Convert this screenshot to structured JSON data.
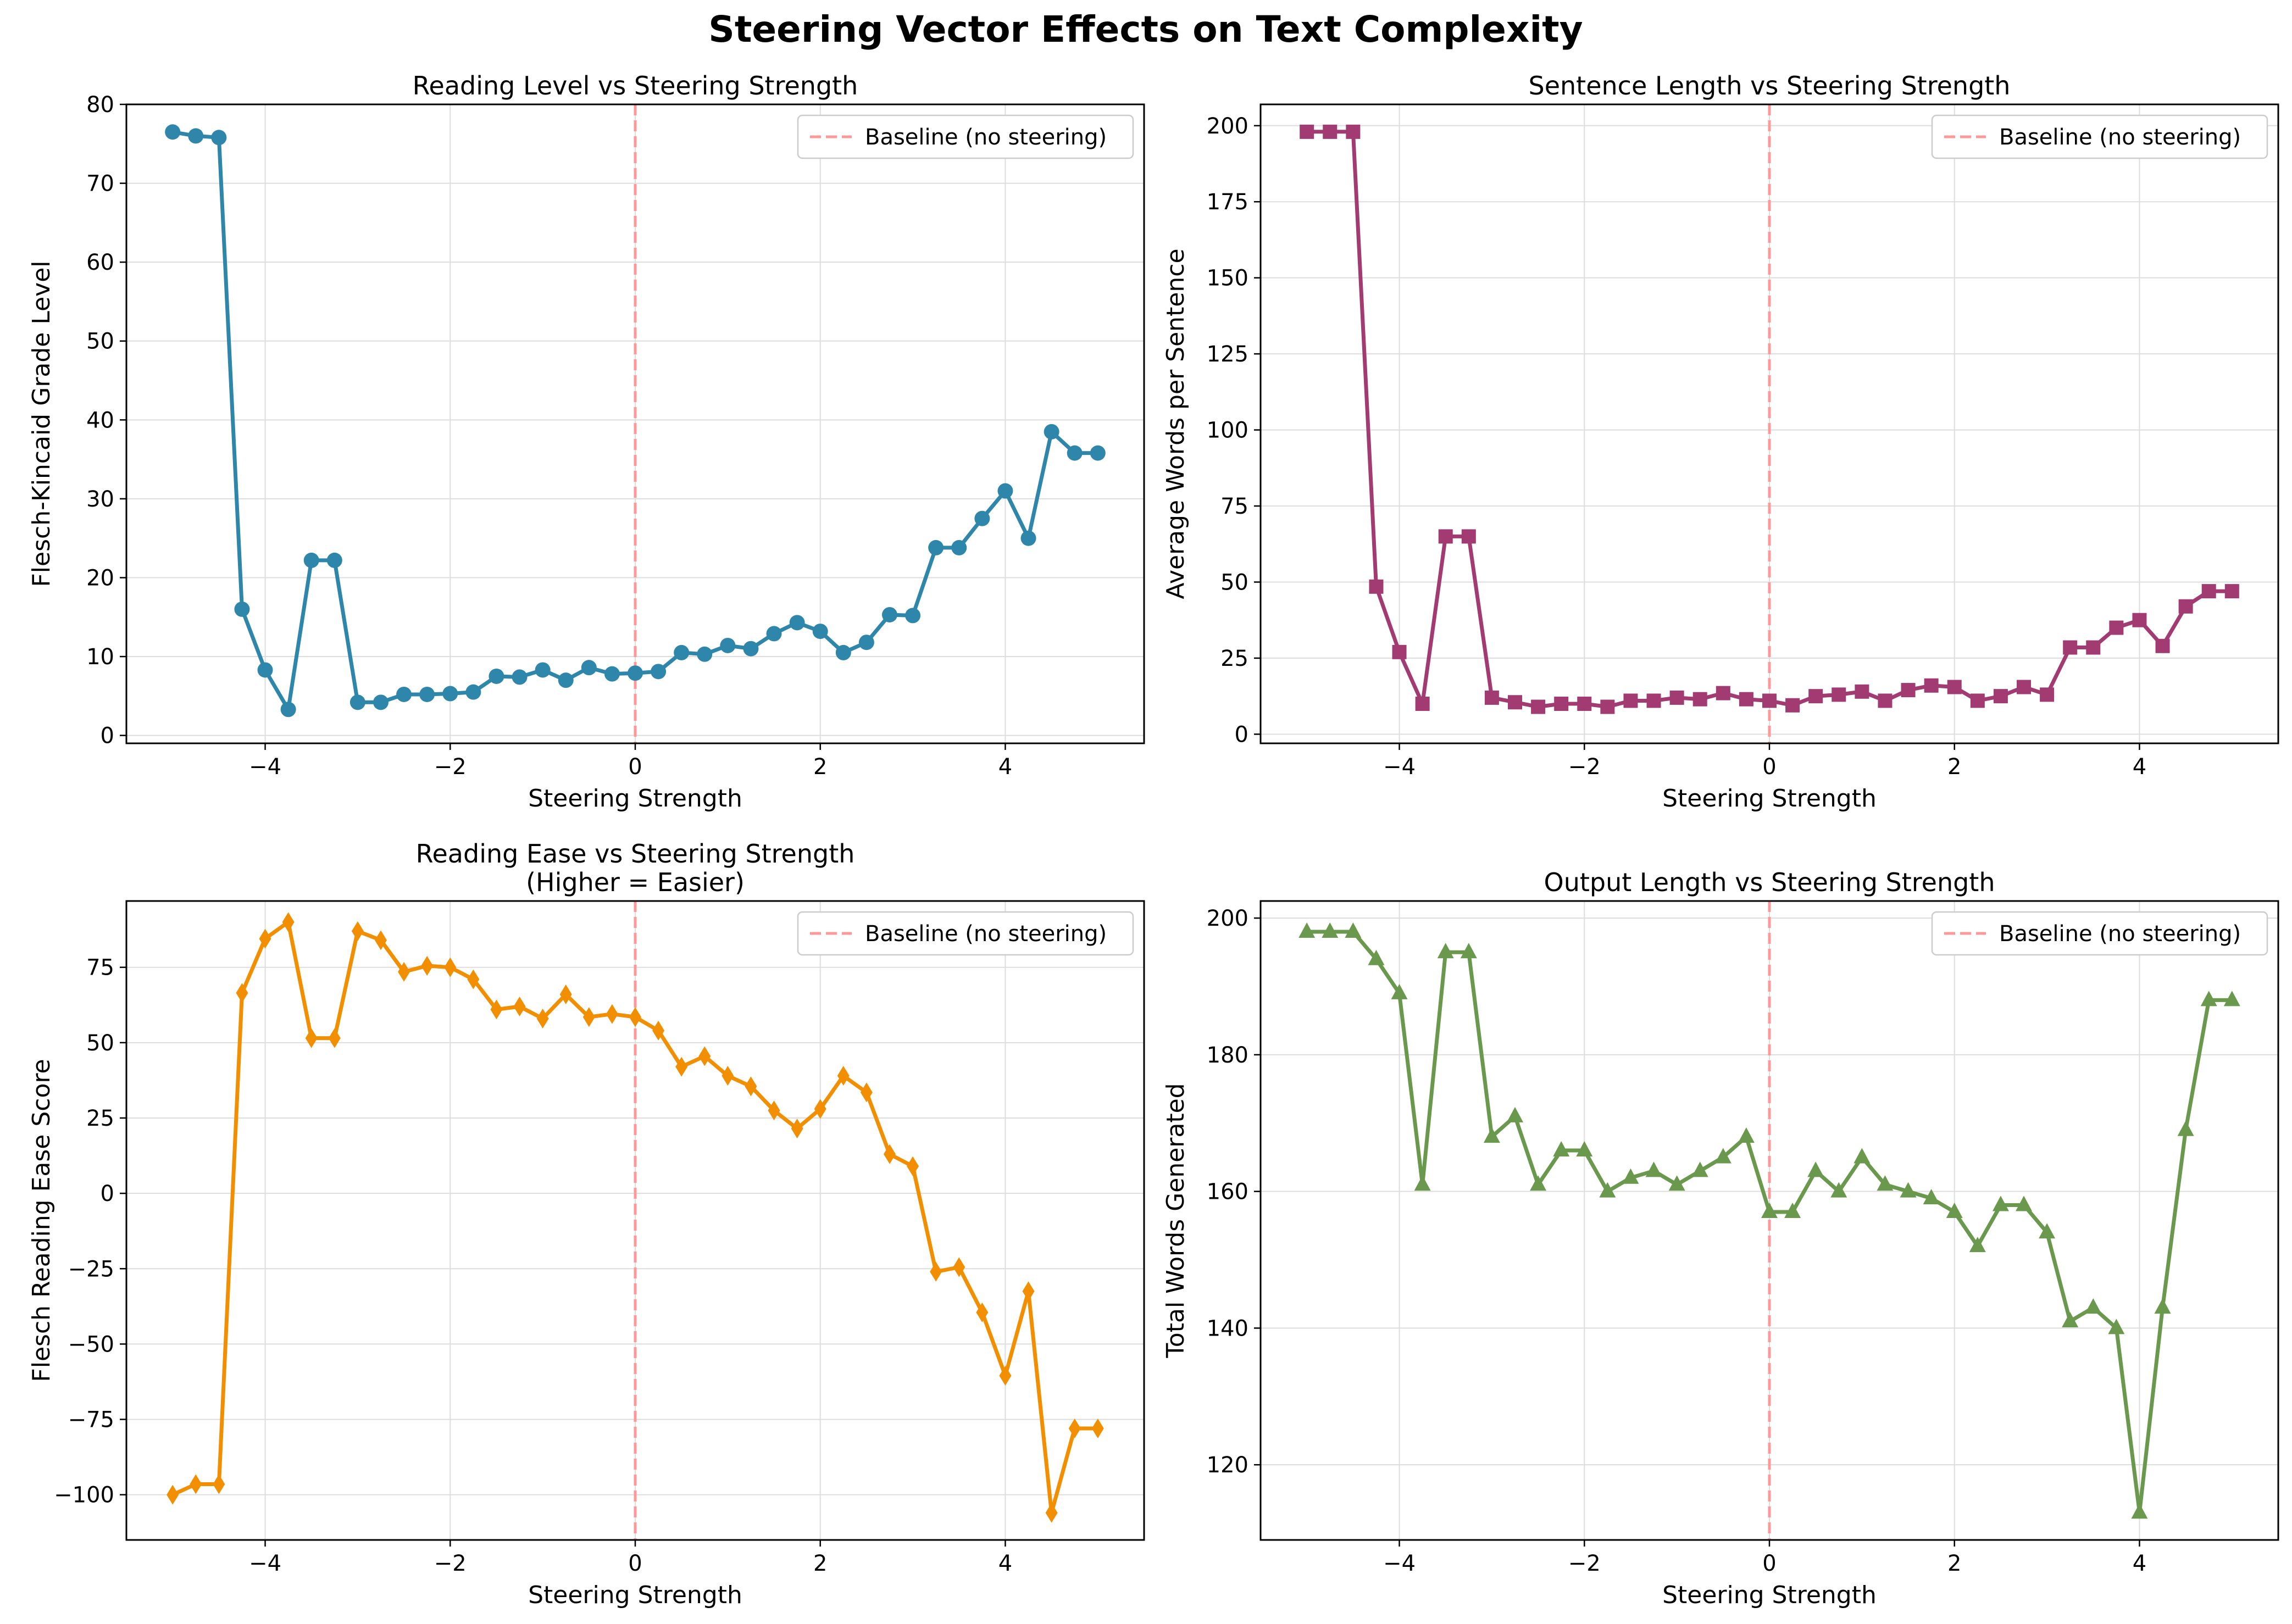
{
  "figure": {
    "suptitle": "Steering Vector Effects on Text Complexity"
  },
  "chart_data": [
    {
      "type": "line",
      "title": "Reading Level vs Steering Strength",
      "title_lines": [
        "Reading Level vs Steering Strength"
      ],
      "xlabel": "Steering Strength",
      "ylabel": "Flesch-Kincaid Grade Level",
      "xlim": [
        -5.5,
        5.5
      ],
      "ylim": [
        -1,
        80
      ],
      "xticks": [
        -4,
        -2,
        0,
        2,
        4
      ],
      "xtick_labels": [
        "−4",
        "−2",
        "0",
        "2",
        "4"
      ],
      "yticks": [
        0,
        10,
        20,
        30,
        40,
        50,
        60,
        70,
        80
      ],
      "ytick_labels": [
        "0",
        "10",
        "20",
        "30",
        "40",
        "50",
        "60",
        "70",
        "80"
      ],
      "grid": true,
      "legend": {
        "position": "upper-right",
        "entries": [
          "Baseline (no steering)"
        ]
      },
      "baseline": {
        "x": 0,
        "color": "#FF9999",
        "style": "dashed",
        "label": "Baseline (no steering)"
      },
      "series": [
        {
          "color": "#2E86AB",
          "marker": "circle",
          "x": [
            -5,
            -4.75,
            -4.5,
            -4.25,
            -4,
            -3.75,
            -3.5,
            -3.25,
            -3,
            -2.75,
            -2.5,
            -2.25,
            -2,
            -1.75,
            -1.5,
            -1.25,
            -1,
            -0.75,
            -0.5,
            -0.25,
            0,
            0.25,
            0.5,
            0.75,
            1,
            1.25,
            1.5,
            1.75,
            2,
            2.25,
            2.5,
            2.75,
            3,
            3.25,
            3.5,
            3.75,
            4,
            4.25,
            4.5,
            4.75,
            5
          ],
          "values": [
            76.5,
            76,
            75.8,
            16,
            8.3,
            3.3,
            22.2,
            22.2,
            4.2,
            4.2,
            5.2,
            5.2,
            5.3,
            5.5,
            7.5,
            7.4,
            8.3,
            7,
            8.6,
            7.8,
            7.9,
            8.1,
            10.5,
            10.3,
            11.4,
            11,
            12.9,
            14.3,
            13.2,
            10.5,
            11.8,
            15.3,
            15.2,
            23.8,
            23.8,
            27.5,
            31,
            25,
            38.5,
            35.8,
            35.8
          ]
        }
      ]
    },
    {
      "type": "line",
      "title": "Sentence Length vs Steering Strength",
      "title_lines": [
        "Sentence Length vs Steering Strength"
      ],
      "xlabel": "Steering Strength",
      "ylabel": "Average Words per Sentence",
      "xlim": [
        -5.5,
        5.5
      ],
      "ylim": [
        -3,
        207
      ],
      "xticks": [
        -4,
        -2,
        0,
        2,
        4
      ],
      "xtick_labels": [
        "−4",
        "−2",
        "0",
        "2",
        "4"
      ],
      "yticks": [
        0,
        25,
        50,
        75,
        100,
        125,
        150,
        175,
        200
      ],
      "ytick_labels": [
        "0",
        "25",
        "50",
        "75",
        "100",
        "125",
        "150",
        "175",
        "200"
      ],
      "grid": true,
      "legend": {
        "position": "upper-right",
        "entries": [
          "Baseline (no steering)"
        ]
      },
      "baseline": {
        "x": 0,
        "color": "#FF9999",
        "style": "dashed",
        "label": "Baseline (no steering)"
      },
      "series": [
        {
          "color": "#A23B72",
          "marker": "square",
          "x": [
            -5,
            -4.75,
            -4.5,
            -4.25,
            -4,
            -3.75,
            -3.5,
            -3.25,
            -3,
            -2.75,
            -2.5,
            -2.25,
            -2,
            -1.75,
            -1.5,
            -1.25,
            -1,
            -0.75,
            -0.5,
            -0.25,
            0,
            0.25,
            0.5,
            0.75,
            1,
            1.25,
            1.5,
            1.75,
            2,
            2.25,
            2.5,
            2.75,
            3,
            3.25,
            3.5,
            3.75,
            4,
            4.25,
            4.5,
            4.75,
            5
          ],
          "values": [
            198,
            198,
            198,
            48.5,
            27,
            10,
            65,
            65,
            12,
            10.5,
            9,
            10,
            10,
            9,
            11,
            11,
            12,
            11.5,
            13.5,
            11.5,
            11,
            9.5,
            12.5,
            13,
            14,
            11,
            14.5,
            16,
            15.5,
            11,
            12.5,
            15.5,
            13,
            28.5,
            28.5,
            35,
            37.5,
            29,
            42,
            47,
            47
          ]
        }
      ]
    },
    {
      "type": "line",
      "title": "Reading Ease vs Steering Strength\n(Higher = Easier)",
      "title_lines": [
        "Reading Ease vs Steering Strength",
        "(Higher = Easier)"
      ],
      "xlabel": "Steering Strength",
      "ylabel": "Flesch Reading Ease Score",
      "xlim": [
        -5.5,
        5.5
      ],
      "ylim": [
        -115,
        97
      ],
      "xticks": [
        -4,
        -2,
        0,
        2,
        4
      ],
      "xtick_labels": [
        "−4",
        "−2",
        "0",
        "2",
        "4"
      ],
      "yticks": [
        -100,
        -75,
        -50,
        -25,
        0,
        25,
        50,
        75
      ],
      "ytick_labels": [
        "−100",
        "−75",
        "−50",
        "−25",
        "0",
        "25",
        "50",
        "75"
      ],
      "grid": true,
      "legend": {
        "position": "upper-right",
        "entries": [
          "Baseline (no steering)"
        ]
      },
      "baseline": {
        "x": 0,
        "color": "#FF9999",
        "style": "dashed",
        "label": "Baseline (no steering)"
      },
      "series": [
        {
          "color": "#F18F01",
          "marker": "thin-diamond",
          "x": [
            -5,
            -4.75,
            -4.5,
            -4.25,
            -4,
            -3.75,
            -3.5,
            -3.25,
            -3,
            -2.75,
            -2.5,
            -2.25,
            -2,
            -1.75,
            -1.5,
            -1.25,
            -1,
            -0.75,
            -0.5,
            -0.25,
            0,
            0.25,
            0.5,
            0.75,
            1,
            1.25,
            1.5,
            1.75,
            2,
            2.25,
            2.5,
            2.75,
            3,
            3.25,
            3.5,
            3.75,
            4,
            4.25,
            4.5,
            4.75,
            5
          ],
          "values": [
            -100,
            -96.5,
            -96.5,
            66.5,
            84.5,
            90,
            51.5,
            51.5,
            87,
            84,
            73.5,
            75.5,
            75,
            71,
            61,
            62,
            58,
            66,
            58.5,
            59.5,
            58.5,
            54,
            42,
            45.5,
            39,
            35.5,
            27.5,
            21.5,
            28,
            39,
            33.5,
            13,
            9,
            -26,
            -24.5,
            -39.5,
            -60.5,
            -32.5,
            -106,
            -78,
            -78
          ]
        }
      ]
    },
    {
      "type": "line",
      "title": "Output Length vs Steering Strength",
      "title_lines": [
        "Output Length vs Steering Strength"
      ],
      "xlabel": "Steering Strength",
      "ylabel": "Total Words Generated",
      "xlim": [
        -5.5,
        5.5
      ],
      "ylim": [
        109,
        202.5
      ],
      "xticks": [
        -4,
        -2,
        0,
        2,
        4
      ],
      "xtick_labels": [
        "−4",
        "−2",
        "0",
        "2",
        "4"
      ],
      "yticks": [
        120,
        140,
        160,
        180,
        200
      ],
      "ytick_labels": [
        "120",
        "140",
        "160",
        "180",
        "200"
      ],
      "grid": true,
      "legend": {
        "position": "upper-right",
        "entries": [
          "Baseline (no steering)"
        ]
      },
      "baseline": {
        "x": 0,
        "color": "#FF9999",
        "style": "dashed",
        "label": "Baseline (no steering)"
      },
      "series": [
        {
          "color": "#6A994E",
          "marker": "triangle-up",
          "x": [
            -5,
            -4.75,
            -4.5,
            -4.25,
            -4,
            -3.75,
            -3.5,
            -3.25,
            -3,
            -2.75,
            -2.5,
            -2.25,
            -2,
            -1.75,
            -1.5,
            -1.25,
            -1,
            -0.75,
            -0.5,
            -0.25,
            0,
            0.25,
            0.5,
            0.75,
            1,
            1.25,
            1.5,
            1.75,
            2,
            2.25,
            2.5,
            2.75,
            3,
            3.25,
            3.5,
            3.75,
            4,
            4.25,
            4.5,
            4.75,
            5
          ],
          "values": [
            198,
            198,
            198,
            194,
            189,
            161,
            195,
            195,
            168,
            171,
            161,
            166,
            166,
            160,
            162,
            163,
            161,
            163,
            165,
            168,
            157,
            157,
            163,
            160,
            165,
            161,
            160,
            159,
            157,
            152,
            158,
            158,
            154,
            141,
            143,
            140,
            113,
            143,
            169,
            188,
            188
          ]
        }
      ]
    }
  ]
}
